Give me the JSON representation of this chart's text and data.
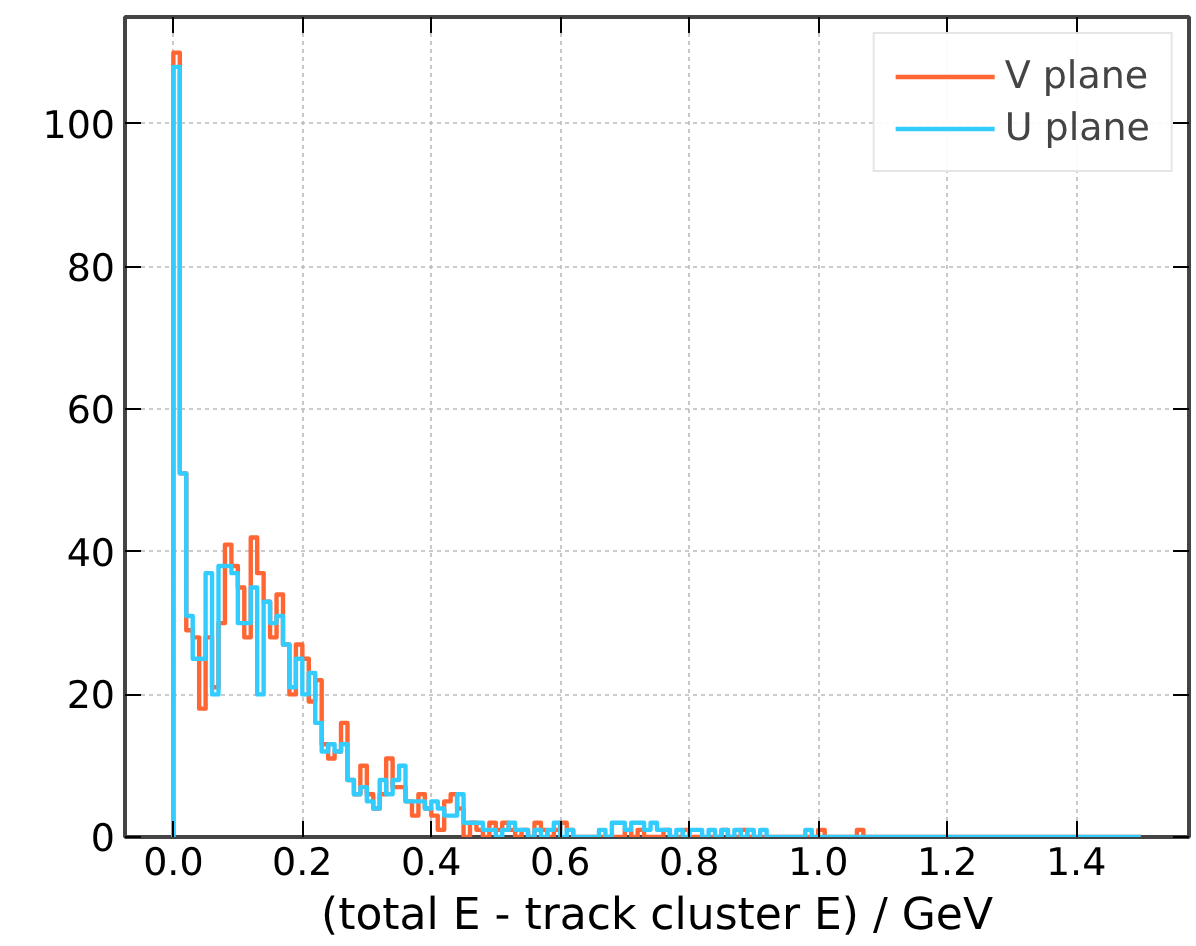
{
  "chart_data": {
    "type": "histogram",
    "xlabel": "(total E - track cluster E) / GeV",
    "bins": [
      0,
      0.01,
      0.02,
      0.03,
      0.04,
      0.05,
      0.06,
      0.07,
      0.08,
      0.09,
      0.1,
      0.11,
      0.12,
      0.13,
      0.14,
      0.15,
      0.16,
      0.17,
      0.18,
      0.19,
      0.2,
      0.21,
      0.22,
      0.23,
      0.24,
      0.25,
      0.26,
      0.27,
      0.28,
      0.29,
      0.3,
      0.31,
      0.32,
      0.33,
      0.34,
      0.35,
      0.36,
      0.37,
      0.38,
      0.39,
      0.4,
      0.41,
      0.42,
      0.43,
      0.44,
      0.45,
      0.46,
      0.47,
      0.48,
      0.49,
      0.5,
      0.51,
      0.52,
      0.53,
      0.54,
      0.55,
      0.56,
      0.57,
      0.58,
      0.59,
      0.6,
      0.61,
      0.62,
      0.63,
      0.64,
      0.65,
      0.66,
      0.67,
      0.68,
      0.69,
      0.7,
      0.71,
      0.72,
      0.73,
      0.74,
      0.75,
      0.76,
      0.77,
      0.78,
      0.79,
      0.8,
      0.81,
      0.82,
      0.83,
      0.84,
      0.85,
      0.86,
      0.87,
      0.88,
      0.89,
      0.9,
      0.91,
      0.92,
      0.93,
      0.94,
      0.95,
      0.96,
      0.97,
      0.98,
      0.99,
      1.0,
      1.01,
      1.02,
      1.03,
      1.04,
      1.05,
      1.06,
      1.07,
      1.08,
      1.09,
      1.1,
      1.11,
      1.12,
      1.13,
      1.14,
      1.15,
      1.16,
      1.17,
      1.18,
      1.19,
      1.2,
      1.21,
      1.22,
      1.23,
      1.24,
      1.25,
      1.26,
      1.27,
      1.28,
      1.29,
      1.3,
      1.31,
      1.32,
      1.33,
      1.34,
      1.35,
      1.36,
      1.37,
      1.38,
      1.39,
      1.4,
      1.41,
      1.42,
      1.43,
      1.44,
      1.45,
      1.46,
      1.47,
      1.48,
      1.49,
      1.5
    ],
    "series": [
      {
        "name": "V plane",
        "color": "#ff6633",
        "values": [
          110,
          51,
          29,
          28,
          18,
          28,
          21,
          30,
          41,
          38,
          35,
          28,
          42,
          37,
          33,
          28,
          34,
          27,
          20,
          27,
          25,
          19,
          22,
          13,
          11,
          12,
          16,
          8,
          6,
          10,
          6,
          4,
          6,
          11,
          7,
          7,
          5,
          3,
          6,
          4,
          3,
          1,
          5,
          6,
          4,
          0,
          2,
          1,
          0,
          2,
          1,
          2,
          1,
          0,
          1,
          0,
          2,
          1,
          0,
          1,
          2,
          1,
          0,
          0,
          0,
          0,
          0,
          0,
          0,
          0,
          1,
          0,
          1,
          0,
          0,
          0,
          1,
          0,
          0,
          1,
          0,
          0,
          0,
          0,
          0,
          1,
          0,
          0,
          1,
          0,
          0,
          0,
          0,
          0,
          0,
          0,
          0,
          0,
          0,
          0,
          1,
          0,
          0,
          0,
          0,
          0,
          1,
          0,
          0,
          0,
          0,
          0,
          0,
          0,
          0,
          0,
          0,
          0,
          0,
          0,
          0,
          0,
          0,
          0,
          0,
          0,
          0,
          0,
          0,
          0,
          0,
          0,
          0,
          0,
          0,
          0,
          0,
          0,
          0,
          0,
          0,
          0,
          0,
          0,
          0,
          0,
          0,
          0,
          0,
          0
        ]
      },
      {
        "name": "U plane",
        "color": "#33ccff",
        "values": [
          108,
          51,
          31,
          25,
          25,
          37,
          20,
          38,
          38,
          37,
          30,
          30,
          35,
          20,
          33,
          30,
          31,
          27,
          21,
          25,
          20,
          23,
          16,
          12,
          13,
          12,
          13,
          8,
          6,
          7,
          5,
          4,
          8,
          6,
          8,
          10,
          5,
          5,
          5,
          4,
          5,
          4,
          3,
          3,
          6,
          2,
          2,
          2,
          1,
          1,
          0,
          1,
          2,
          1,
          1,
          0,
          1,
          0,
          1,
          2,
          0,
          1,
          0,
          0,
          0,
          0,
          1,
          0,
          2,
          2,
          1,
          2,
          2,
          1,
          2,
          1,
          1,
          0,
          1,
          0,
          1,
          1,
          0,
          1,
          0,
          1,
          0,
          1,
          0,
          1,
          0,
          1,
          0,
          0,
          0,
          0,
          0,
          0,
          1,
          0,
          0,
          0,
          0,
          0,
          0,
          0,
          0,
          0,
          0,
          0,
          0,
          0,
          0,
          0,
          0,
          0,
          0,
          0,
          0,
          0,
          0,
          0,
          0,
          0,
          0,
          0,
          0,
          0,
          0,
          0,
          0,
          0,
          0,
          0,
          0,
          0,
          0,
          0,
          0,
          0,
          0,
          0,
          0,
          0,
          0,
          0,
          0,
          0,
          0,
          0
        ]
      }
    ],
    "xlim": [
      -0.075,
      1.575
    ],
    "ylim": [
      0,
      115
    ],
    "xticks": [
      {
        "value": 0,
        "label": "0.0"
      },
      {
        "value": 0.2,
        "label": "0.2"
      },
      {
        "value": 0.4,
        "label": "0.4"
      },
      {
        "value": 0.6,
        "label": "0.6"
      },
      {
        "value": 0.8,
        "label": "0.8"
      },
      {
        "value": 1.0,
        "label": "1.0"
      },
      {
        "value": 1.2,
        "label": "1.2"
      },
      {
        "value": 1.4,
        "label": "1.4"
      }
    ],
    "yticks": [
      0,
      20,
      40,
      60,
      80,
      100
    ],
    "grid": true,
    "legend": "top right"
  }
}
